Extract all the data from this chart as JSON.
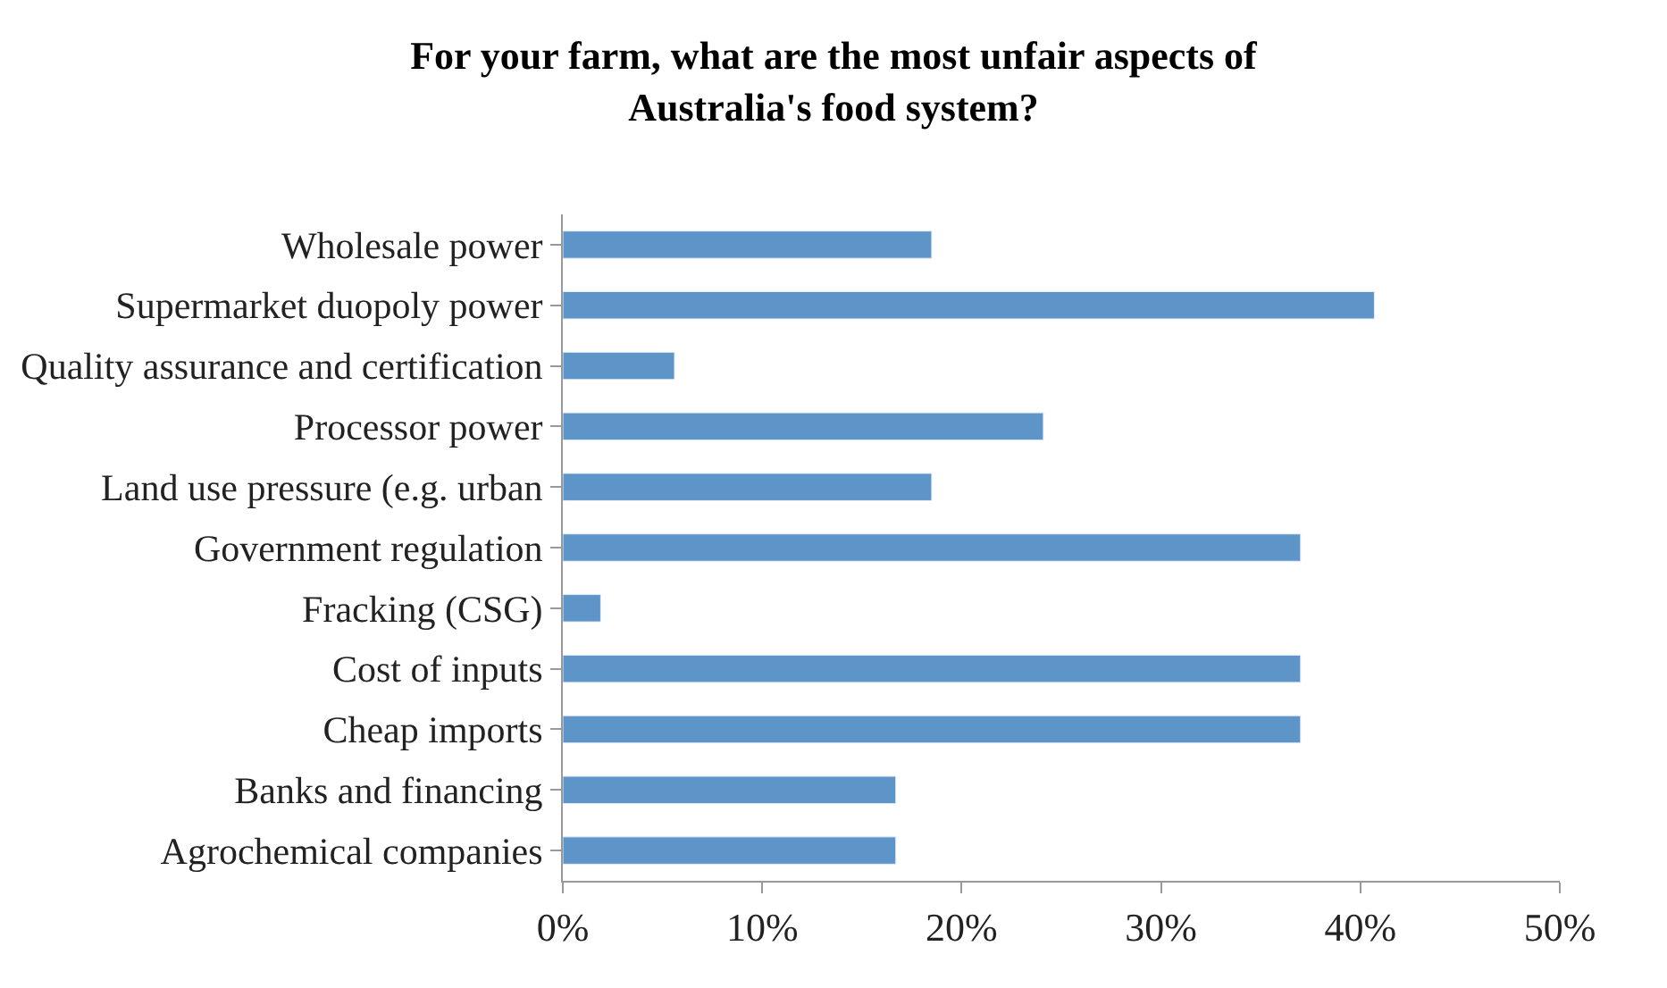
{
  "chart_data": {
    "type": "bar",
    "orientation": "horizontal",
    "title": "For your farm, what are the most unfair aspects of\nAustralia's food system?",
    "categories": [
      "Wholesale power",
      "Supermarket duopoly power",
      "Quality assurance and certification",
      "Processor power",
      "Land use pressure (e.g. urban",
      "Government regulation",
      "Fracking (CSG)",
      "Cost of inputs",
      "Cheap imports",
      "Banks and financing",
      "Agrochemical companies"
    ],
    "values": [
      18.5,
      40.7,
      5.6,
      24.1,
      18.5,
      37.0,
      1.9,
      37.0,
      37.0,
      16.7,
      16.7
    ],
    "color": "#5e95c9",
    "xlim": [
      0,
      50
    ],
    "xticks": [
      {
        "value": 0,
        "label": "0%"
      },
      {
        "value": 10,
        "label": "10%"
      },
      {
        "value": 20,
        "label": "20%"
      },
      {
        "value": 30,
        "label": "30%"
      },
      {
        "value": 40,
        "label": "40%"
      },
      {
        "value": 50,
        "label": "50%"
      }
    ]
  }
}
